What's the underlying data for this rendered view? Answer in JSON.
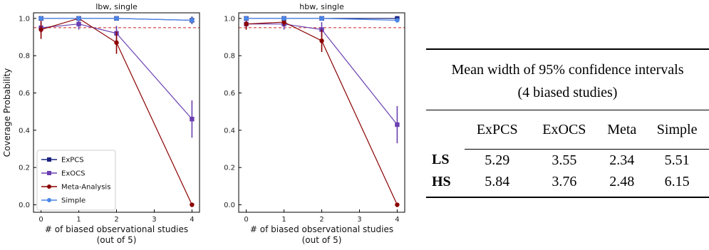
{
  "chart_data": [
    {
      "type": "line",
      "title": "lbw, single",
      "xlabel": "# of biased observational studies",
      "xlabel2": "(out of 5)",
      "ylabel": "Coverage Probability",
      "xlim": [
        -0.2,
        4.2
      ],
      "ylim": [
        -0.04,
        1.03
      ],
      "xticks": [
        "0",
        "1",
        "2",
        "3",
        "4"
      ],
      "yticks": [
        "0.0",
        "0.2",
        "0.4",
        "0.6",
        "0.8",
        "1.0"
      ],
      "reference_line": 0.95,
      "legend_position": "lower-left",
      "show_legend": true,
      "series": [
        {
          "name": "ExPCS",
          "color": "#1a237e",
          "marker": "square",
          "x": [
            0,
            1,
            2,
            4
          ],
          "y": [
            1.0,
            1.0,
            1.0,
            0.99
          ],
          "err": [
            0,
            0,
            0,
            0.02
          ]
        },
        {
          "name": "ExOCS",
          "color": "#6a3fb0",
          "marker": "square",
          "x": [
            0,
            1,
            2,
            4
          ],
          "y": [
            0.95,
            0.97,
            0.92,
            0.46
          ],
          "err": [
            0.03,
            0.03,
            0.04,
            0.1
          ]
        },
        {
          "name": "Meta-Analysis",
          "color": "#8b0000",
          "marker": "circle",
          "x": [
            0,
            1,
            2,
            4
          ],
          "y": [
            0.94,
            1.0,
            0.87,
            0.0
          ],
          "err": [
            0.05,
            0,
            0.06,
            0
          ]
        },
        {
          "name": "Simple",
          "color": "#4a86e8",
          "marker": "circle",
          "x": [
            0,
            1,
            2,
            4
          ],
          "y": [
            1.0,
            1.0,
            1.0,
            0.99
          ],
          "err": [
            0,
            0,
            0,
            0.01
          ]
        }
      ]
    },
    {
      "type": "line",
      "title": "hbw, single",
      "xlabel": "# of biased observational studies",
      "xlabel2": "(out of 5)",
      "ylabel": "",
      "xlim": [
        -0.2,
        4.2
      ],
      "ylim": [
        -0.04,
        1.03
      ],
      "xticks": [
        "0",
        "1",
        "2",
        "3",
        "4"
      ],
      "yticks": [
        "0.0",
        "0.2",
        "0.4",
        "0.6",
        "0.8",
        "1.0"
      ],
      "reference_line": 0.95,
      "show_legend": false,
      "series": [
        {
          "name": "ExPCS",
          "color": "#1a237e",
          "marker": "square",
          "x": [
            0,
            1,
            2,
            4
          ],
          "y": [
            1.0,
            1.0,
            1.0,
            1.0
          ],
          "err": [
            0,
            0,
            0,
            0.01
          ]
        },
        {
          "name": "ExOCS",
          "color": "#6a3fb0",
          "marker": "square",
          "x": [
            0,
            1,
            2,
            4
          ],
          "y": [
            0.97,
            0.97,
            0.94,
            0.43
          ],
          "err": [
            0.03,
            0.03,
            0.04,
            0.1
          ]
        },
        {
          "name": "Meta-Analysis",
          "color": "#8b0000",
          "marker": "circle",
          "x": [
            0,
            1,
            2,
            4
          ],
          "y": [
            0.97,
            0.98,
            0.88,
            0.0
          ],
          "err": [
            0.03,
            0.02,
            0.06,
            0
          ]
        },
        {
          "name": "Simple",
          "color": "#4a86e8",
          "marker": "circle",
          "x": [
            0,
            1,
            2,
            4
          ],
          "y": [
            1.0,
            1.0,
            1.0,
            0.99
          ],
          "err": [
            0,
            0,
            0,
            0.01
          ]
        }
      ]
    }
  ],
  "table": {
    "caption_line1": "Mean width of 95% confidence intervals",
    "caption_line2": "(4 biased studies)",
    "columns": [
      "ExPCS",
      "ExOCS",
      "Meta",
      "Simple"
    ],
    "rows": [
      {
        "label": "LS",
        "values": [
          "5.29",
          "3.55",
          "2.34",
          "5.51"
        ]
      },
      {
        "label": "HS",
        "values": [
          "5.84",
          "3.76",
          "2.48",
          "6.15"
        ]
      }
    ]
  },
  "colors": {
    "reference_line": "#cc2222",
    "axis": "#000000"
  }
}
